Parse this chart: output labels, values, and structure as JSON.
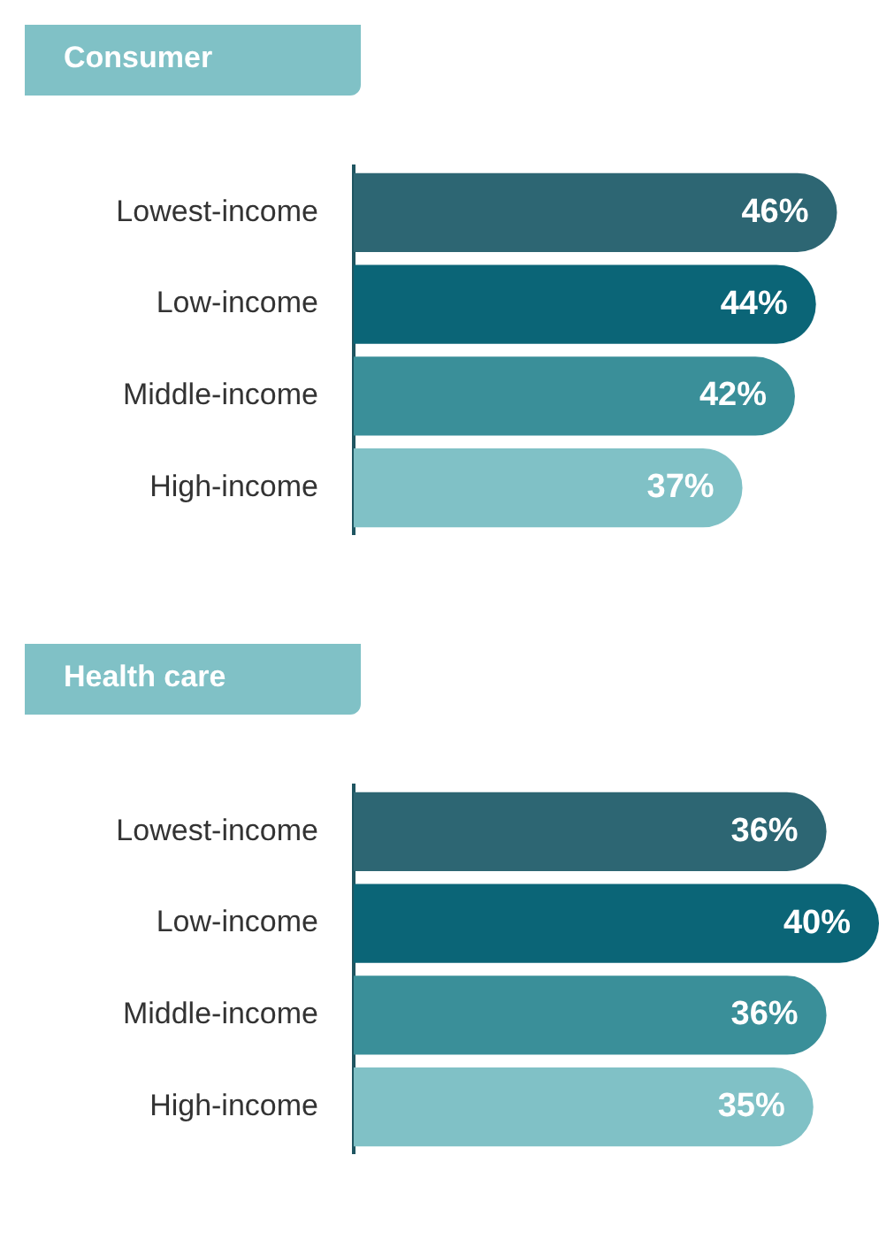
{
  "chart_data": [
    {
      "type": "bar",
      "orientation": "horizontal",
      "title": "Consumer",
      "categories": [
        "Lowest-income",
        "Low-income",
        "Middle-income",
        "High-income"
      ],
      "values": [
        46,
        44,
        42,
        37
      ],
      "value_labels": [
        "46%",
        "44%",
        "42%",
        "37%"
      ],
      "colors": [
        "#2d6673",
        "#0b6577",
        "#3a8f99",
        "#80c1c6"
      ],
      "tick_labels": "y"
    },
    {
      "type": "bar",
      "orientation": "horizontal",
      "title": "Health care",
      "categories": [
        "Lowest-income",
        "Low-income",
        "Middle-income",
        "High-income"
      ],
      "values": [
        36,
        40,
        36,
        35
      ],
      "value_labels": [
        "36%",
        "40%",
        "36%",
        "35%"
      ],
      "colors": [
        "#2d6673",
        "#0b6577",
        "#3a8f99",
        "#80c1c6"
      ],
      "tick_labels": "y"
    }
  ]
}
